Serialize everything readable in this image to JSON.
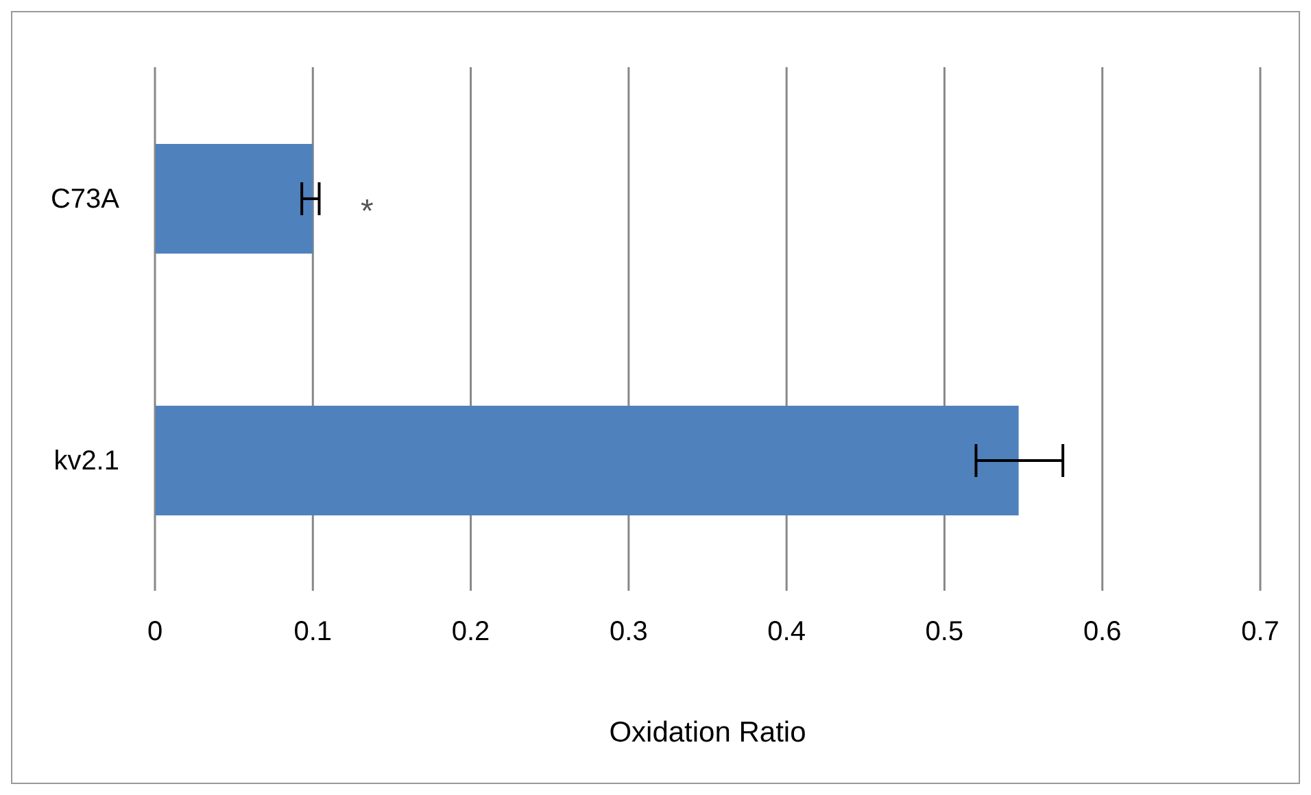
{
  "chart_data": {
    "type": "bar",
    "orientation": "horizontal",
    "categories": [
      "C73A",
      "kv2.1"
    ],
    "values": [
      0.1,
      0.547
    ],
    "color": "#4f81bd",
    "errors": [
      [
        0.093,
        0.104
      ],
      [
        0.52,
        0.575
      ]
    ],
    "xlabel": "Oxidation Ratio",
    "xlim": [
      0,
      0.7
    ],
    "xticks": [
      0,
      0.1,
      0.2,
      0.3,
      0.4,
      0.5,
      0.6,
      0.7
    ],
    "grid": "x",
    "legend": false,
    "annotations": [
      "*"
    ]
  }
}
